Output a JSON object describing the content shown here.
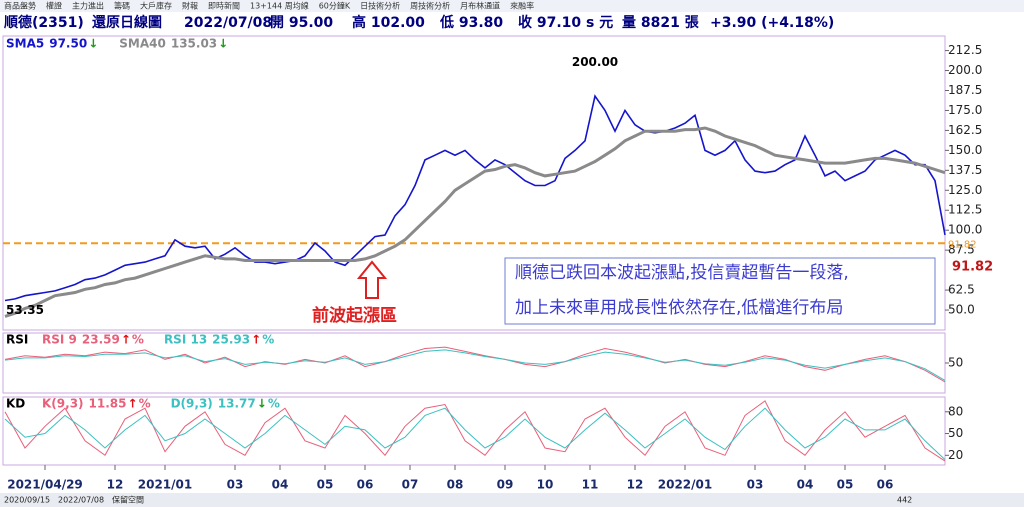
{
  "tabs": [
    "商品盤勢",
    "權證",
    "主力進出",
    "籌碼",
    "大戶庫存",
    "財報",
    "即時新聞",
    "13+144 周均線",
    "60分鐘K",
    "日技術分析",
    "周技術分析",
    "月布林通道",
    "來融率"
  ],
  "header": {
    "name": "順德(2351)",
    "mode": "還原日線圖",
    "date": "2022/07/08",
    "open": "開 95.00",
    "high": "高 102.00",
    "low": "低 93.80",
    "close": "收 97.10 s 元",
    "volume": "量 8821 張",
    "change": "+3.90 (+4.18%)"
  },
  "footer": {
    "start": "2020/09/15",
    "end": "2022/07/08",
    "reserve": "保留空間",
    "count": "442"
  },
  "chart_data": [
    {
      "type": "line",
      "xlim": [
        0,
        94
      ],
      "ylim": [
        37.5,
        221
      ],
      "x": [
        0,
        1,
        2,
        3,
        4,
        5,
        6,
        7,
        8,
        9,
        10,
        11,
        12,
        13,
        14,
        15,
        16,
        17,
        18,
        19,
        20,
        21,
        22,
        23,
        24,
        25,
        26,
        27,
        28,
        29,
        30,
        31,
        32,
        33,
        34,
        35,
        36,
        37,
        38,
        39,
        40,
        41,
        42,
        43,
        44,
        45,
        46,
        47,
        48,
        49,
        50,
        51,
        52,
        53,
        54,
        55,
        56,
        57,
        58,
        59,
        60,
        61,
        62,
        63,
        64,
        65,
        66,
        67,
        68,
        69,
        70,
        71,
        72,
        73,
        74,
        75,
        76,
        77,
        78,
        79,
        80,
        81,
        82,
        83,
        84,
        85,
        86,
        87,
        88,
        89,
        90,
        91,
        92,
        93,
        94
      ],
      "yticks": [
        212.5,
        {
          "value": 200,
          "label": "200.0"
        },
        187.5,
        {
          "value": 175,
          "label": "175.0"
        },
        162.5,
        {
          "value": 150,
          "label": "150.0"
        },
        137.5,
        {
          "value": 125,
          "label": "125.0"
        },
        112.5,
        {
          "value": 100,
          "label": "100.0"
        },
        87.5,
        62.5,
        {
          "value": 50,
          "label": "50.0"
        }
      ],
      "xticks": [
        {
          "value": 4,
          "label": "2021/04/29"
        },
        {
          "value": 11,
          "label": "12"
        },
        {
          "value": 16,
          "label": "2021/01"
        },
        {
          "value": 23,
          "label": "03"
        },
        {
          "value": 27.5,
          "label": "04"
        },
        {
          "value": 32,
          "label": "05"
        },
        {
          "value": 36,
          "label": "06"
        },
        {
          "value": 40.5,
          "label": "07"
        },
        {
          "value": 45,
          "label": "08"
        },
        {
          "value": 50,
          "label": "09"
        },
        {
          "value": 54,
          "label": "10"
        },
        {
          "value": 58.5,
          "label": "11"
        },
        {
          "value": 63,
          "label": "12"
        },
        {
          "value": 68,
          "label": "2022/01"
        },
        {
          "value": 75,
          "label": "03"
        },
        {
          "value": 80,
          "label": "04"
        },
        {
          "value": 84,
          "label": "05"
        },
        {
          "value": 88,
          "label": "06"
        }
      ],
      "series": [
        {
          "name": "SMA5",
          "last": "97.50",
          "trend": "↓",
          "trend_color": "#1a9a1a",
          "color": "#1515cc",
          "values": [
            56,
            57,
            59,
            60,
            61,
            62,
            64,
            66,
            69,
            70,
            72,
            75,
            78,
            79,
            80,
            82,
            84,
            94,
            90,
            89,
            90,
            82,
            85,
            89,
            84,
            80,
            80,
            79,
            80,
            81,
            84,
            92,
            87,
            80,
            78,
            84,
            90,
            96,
            97,
            109,
            116,
            128,
            144,
            147,
            150,
            147,
            150,
            144,
            139,
            144,
            141,
            136,
            131,
            128,
            128,
            131,
            145,
            150,
            156,
            184,
            175,
            162,
            175,
            166,
            162,
            161,
            162,
            164,
            167,
            172,
            150,
            147,
            150,
            156,
            144,
            137,
            136,
            137,
            141,
            144,
            159,
            147,
            134,
            137,
            131,
            134,
            137,
            144,
            147,
            150,
            147,
            141,
            141,
            131,
            97
          ]
        },
        {
          "name": "SMA40",
          "last": "135.03",
          "trend": "↓",
          "trend_color": "#1a9a1a",
          "color": "#8a8a8a",
          "values": [
            46,
            48,
            51,
            53,
            56,
            59,
            60,
            61,
            63,
            64,
            66,
            67,
            69,
            70,
            72,
            74,
            76,
            78,
            80,
            82,
            84,
            83,
            82,
            82,
            81,
            81,
            81,
            81,
            81,
            81,
            81,
            81,
            81,
            81,
            81,
            81,
            82,
            84,
            87,
            90,
            94,
            100,
            106,
            112,
            118,
            125,
            129,
            133,
            137,
            138,
            140,
            141,
            139,
            136,
            134,
            135,
            136,
            137,
            140,
            143,
            147,
            151,
            156,
            159,
            162,
            162,
            162,
            162,
            163,
            163,
            164,
            162,
            159,
            157,
            155,
            153,
            150,
            147,
            146,
            145,
            144,
            143,
            142,
            142,
            142,
            143,
            144,
            145,
            145,
            144,
            143,
            142,
            140,
            138,
            136
          ]
        }
      ],
      "hline": {
        "value": 91.82,
        "label": "91.82",
        "color": "#f29a1c"
      },
      "last_label": "91.82",
      "annotations": {
        "high": {
          "x": 59,
          "value": 200,
          "label": "200.00"
        },
        "low": {
          "x": 0,
          "value": 53.35,
          "label": "53.35"
        },
        "zone": "前波起漲區",
        "note": [
          "順德已跌回本波起漲點,投信賣超暫告一段落,",
          "加上未來車用成長性依然存在,低檔進行布局"
        ]
      }
    },
    {
      "type": "line",
      "title": "RSI",
      "xlim": [
        0,
        94
      ],
      "ylim": [
        10,
        90
      ],
      "yticks": [
        50
      ],
      "x": [
        0,
        2,
        4,
        6,
        8,
        10,
        12,
        14,
        16,
        18,
        20,
        22,
        24,
        26,
        28,
        30,
        32,
        34,
        36,
        38,
        40,
        42,
        44,
        46,
        48,
        50,
        52,
        54,
        56,
        58,
        60,
        62,
        64,
        66,
        68,
        70,
        72,
        74,
        76,
        78,
        80,
        82,
        84,
        86,
        88,
        90,
        92,
        94
      ],
      "series": [
        {
          "name": "RSI 9",
          "last": "23.59",
          "trend": "↑",
          "trend_color": "#e01010",
          "unit": "%",
          "color": "#e8607a",
          "values": [
            55,
            60,
            58,
            62,
            60,
            65,
            63,
            68,
            55,
            62,
            50,
            58,
            45,
            52,
            48,
            55,
            50,
            60,
            45,
            52,
            62,
            70,
            72,
            66,
            60,
            55,
            48,
            45,
            52,
            62,
            70,
            65,
            58,
            50,
            55,
            48,
            45,
            52,
            60,
            55,
            45,
            40,
            48,
            55,
            60,
            52,
            40,
            24
          ]
        },
        {
          "name": "RSI 13",
          "last": "25.93",
          "trend": "↑",
          "trend_color": "#e01010",
          "unit": "%",
          "color": "#3cc0c0",
          "values": [
            54,
            57,
            57,
            60,
            59,
            62,
            62,
            64,
            57,
            60,
            52,
            56,
            48,
            51,
            49,
            53,
            51,
            57,
            48,
            52,
            59,
            66,
            68,
            64,
            59,
            55,
            50,
            48,
            52,
            59,
            65,
            62,
            57,
            51,
            54,
            49,
            47,
            51,
            57,
            54,
            47,
            43,
            48,
            53,
            57,
            52,
            42,
            26
          ]
        }
      ]
    },
    {
      "type": "line",
      "title": "KD",
      "xlim": [
        0,
        94
      ],
      "ylim": [
        8,
        99
      ],
      "yticks": [
        80,
        50,
        20
      ],
      "x": [
        0,
        2,
        4,
        6,
        8,
        10,
        12,
        14,
        16,
        18,
        20,
        22,
        24,
        26,
        28,
        30,
        32,
        34,
        36,
        38,
        40,
        42,
        44,
        46,
        48,
        50,
        52,
        54,
        56,
        58,
        60,
        62,
        64,
        66,
        68,
        70,
        72,
        74,
        76,
        78,
        80,
        82,
        84,
        86,
        88,
        90,
        92,
        94
      ],
      "series": [
        {
          "name": "K(9,3)",
          "last": "11.85",
          "trend": "↑",
          "trend_color": "#e01010",
          "unit": "%",
          "color": "#e8607a",
          "values": [
            80,
            30,
            60,
            85,
            40,
            20,
            70,
            85,
            25,
            60,
            80,
            35,
            20,
            65,
            85,
            40,
            30,
            75,
            50,
            20,
            60,
            85,
            90,
            40,
            20,
            55,
            80,
            30,
            25,
            70,
            85,
            45,
            20,
            60,
            80,
            30,
            20,
            75,
            95,
            40,
            20,
            55,
            80,
            45,
            60,
            75,
            30,
            12
          ]
        },
        {
          "name": "D(9,3)",
          "last": "13.77",
          "trend": "↓",
          "trend_color": "#1a9a1a",
          "unit": "%",
          "color": "#3cc0c0",
          "values": [
            70,
            45,
            50,
            75,
            55,
            30,
            55,
            75,
            40,
            50,
            70,
            50,
            30,
            50,
            75,
            55,
            35,
            60,
            55,
            30,
            45,
            75,
            85,
            55,
            30,
            45,
            70,
            45,
            30,
            55,
            78,
            55,
            30,
            50,
            70,
            45,
            28,
            60,
            85,
            55,
            30,
            45,
            70,
            55,
            55,
            70,
            40,
            14
          ]
        }
      ]
    }
  ]
}
